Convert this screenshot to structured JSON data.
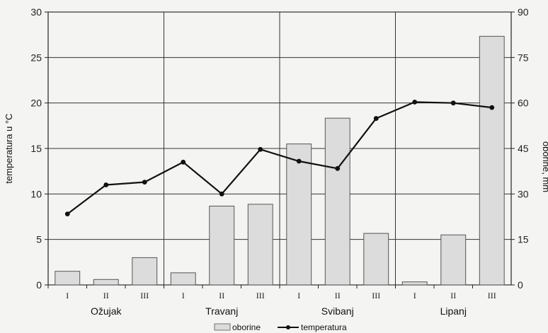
{
  "chart_data": {
    "type": "bar+line",
    "months": [
      "Ožujak",
      "Travanj",
      "Svibanj",
      "Lipanj"
    ],
    "decades": [
      "I",
      "II",
      "III",
      "I",
      "II",
      "III",
      "I",
      "II",
      "III",
      "I",
      "II",
      "III"
    ],
    "series": [
      {
        "name": "oborine",
        "type": "bar",
        "axis": "right",
        "color": "#dcdcdc",
        "values": [
          4.5,
          1.8,
          9,
          4,
          26,
          26.6,
          46.5,
          55,
          17,
          1,
          16.5,
          82
        ]
      },
      {
        "name": "temperatura",
        "type": "line",
        "axis": "left",
        "color": "#111111",
        "values": [
          7.8,
          11,
          11.3,
          13.5,
          10,
          14.9,
          13.6,
          12.8,
          18.3,
          20.1,
          20,
          19.5
        ]
      }
    ],
    "ylabel_left": "temperatura u °C",
    "ylabel_right": "oborine, mm",
    "ylim_left": [
      0,
      30
    ],
    "ylim_right": [
      0,
      90
    ],
    "yticks_left": [
      "0",
      "5",
      "10",
      "15",
      "20",
      "25",
      "30"
    ],
    "yticks_right": [
      "0",
      "15",
      "30",
      "45",
      "60",
      "75",
      "90"
    ],
    "grid": true,
    "legend_position": "bottom"
  }
}
